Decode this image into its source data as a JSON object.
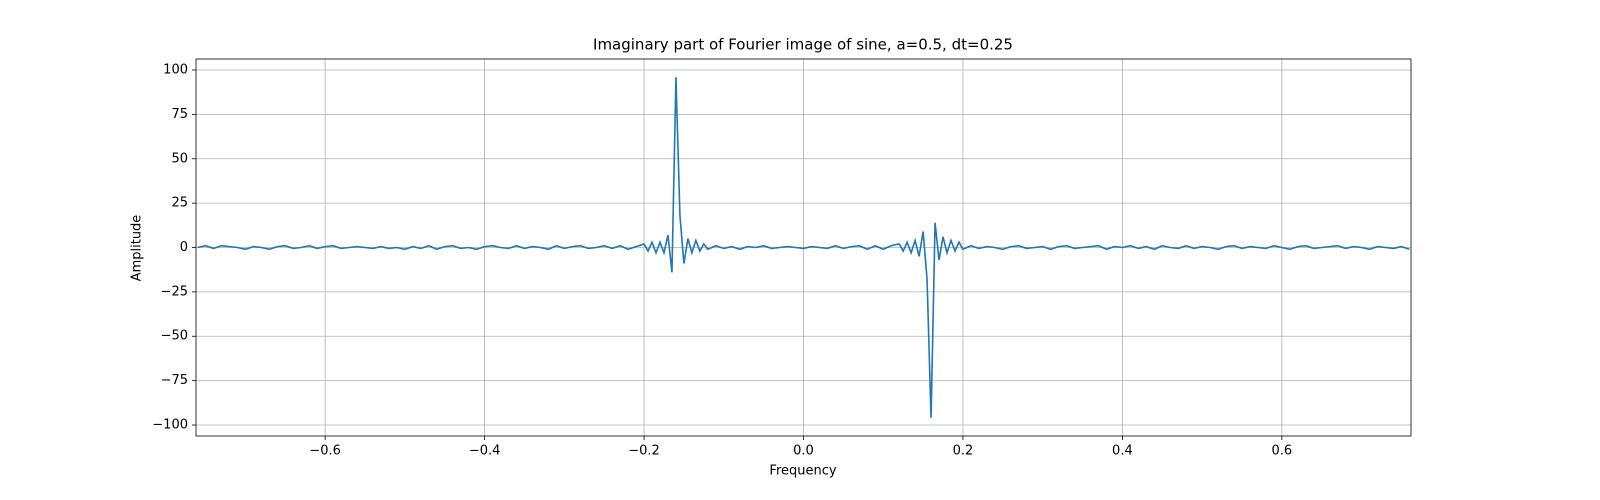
{
  "chart_data": {
    "type": "line",
    "title": "Imaginary part of Fourier image of sine, a=0.5, dt=0.25",
    "xlabel": "Frequency",
    "ylabel": "Amplitude",
    "color": "#1f77b4",
    "grid": true,
    "xlim": [
      -0.762,
      0.762
    ],
    "ylim": [
      -106.2,
      106.2
    ],
    "xticks": [
      {
        "value": -0.6,
        "label": "−0.6"
      },
      {
        "value": -0.4,
        "label": "−0.4"
      },
      {
        "value": -0.2,
        "label": "−0.2"
      },
      {
        "value": 0,
        "label": "0.0"
      },
      0.2,
      0.4,
      0.6
    ],
    "yticks": [
      {
        "value": -100,
        "label": "−100"
      },
      {
        "value": -75,
        "label": "−75"
      },
      {
        "value": -50,
        "label": "−50"
      },
      {
        "value": -25,
        "label": "−25"
      },
      0,
      25,
      50,
      75,
      100
    ],
    "x": [
      -0.76,
      -0.75,
      -0.74,
      -0.73,
      -0.72,
      -0.71,
      -0.7,
      -0.69,
      -0.68,
      -0.67,
      -0.66,
      -0.65,
      -0.64,
      -0.63,
      -0.62,
      -0.61,
      -0.6,
      -0.59,
      -0.58,
      -0.57,
      -0.56,
      -0.55,
      -0.54,
      -0.53,
      -0.52,
      -0.51,
      -0.5,
      -0.49,
      -0.48,
      -0.47,
      -0.46,
      -0.45,
      -0.44,
      -0.43,
      -0.42,
      -0.41,
      -0.4,
      -0.39,
      -0.38,
      -0.37,
      -0.36,
      -0.35,
      -0.34,
      -0.33,
      -0.32,
      -0.31,
      -0.3,
      -0.29,
      -0.28,
      -0.27,
      -0.26,
      -0.25,
      -0.24,
      -0.23,
      -0.22,
      -0.21,
      -0.2,
      -0.195,
      -0.19,
      -0.185,
      -0.18,
      -0.175,
      -0.17,
      -0.165,
      -0.16,
      -0.155,
      -0.15,
      -0.145,
      -0.14,
      -0.135,
      -0.13,
      -0.125,
      -0.12,
      -0.11,
      -0.1,
      -0.09,
      -0.08,
      -0.07,
      -0.06,
      -0.05,
      -0.04,
      -0.03,
      -0.02,
      -0.01,
      0,
      0.01,
      0.02,
      0.03,
      0.04,
      0.05,
      0.06,
      0.07,
      0.08,
      0.09,
      0.1,
      0.11,
      0.12,
      0.125,
      0.13,
      0.135,
      0.14,
      0.145,
      0.15,
      0.155,
      0.16,
      0.165,
      0.17,
      0.175,
      0.18,
      0.185,
      0.19,
      0.195,
      0.2,
      0.21,
      0.22,
      0.23,
      0.24,
      0.25,
      0.26,
      0.27,
      0.28,
      0.29,
      0.3,
      0.31,
      0.32,
      0.33,
      0.34,
      0.35,
      0.36,
      0.37,
      0.38,
      0.39,
      0.4,
      0.41,
      0.42,
      0.43,
      0.44,
      0.45,
      0.46,
      0.47,
      0.48,
      0.49,
      0.5,
      0.51,
      0.52,
      0.53,
      0.54,
      0.55,
      0.56,
      0.57,
      0.58,
      0.59,
      0.6,
      0.61,
      0.62,
      0.63,
      0.64,
      0.65,
      0.66,
      0.67,
      0.68,
      0.69,
      0.7,
      0.71,
      0.72,
      0.73,
      0.74,
      0.75,
      0.76
    ],
    "values": [
      0,
      1,
      -0.5,
      1,
      0.5,
      0,
      -1,
      0.5,
      0,
      -1,
      0.5,
      1,
      -0.5,
      0,
      1,
      -0.5,
      0.5,
      1,
      -0.5,
      0,
      0.5,
      0,
      -0.5,
      0.5,
      -0.5,
      0,
      -1,
      0.5,
      -0.5,
      1,
      -1,
      0.5,
      1,
      -0.5,
      0,
      -1,
      0.5,
      1,
      0,
      -0.5,
      1,
      -0.5,
      0.5,
      0,
      -1,
      1,
      -0.5,
      0.5,
      1,
      -0.5,
      0,
      1,
      -0.5,
      1,
      -1,
      0.5,
      2,
      -2,
      3,
      -3,
      3,
      -3,
      7,
      -14,
      96,
      18,
      -9,
      5,
      -3,
      4,
      -2,
      2,
      -1,
      1,
      -0.5,
      0.5,
      -1,
      0.5,
      0,
      1,
      -0.5,
      0,
      0.5,
      0,
      -0.5,
      0.5,
      0,
      -0.5,
      1,
      -0.5,
      0.5,
      1,
      -1,
      1,
      -1,
      1,
      2,
      -2,
      3,
      -3,
      4,
      -5,
      9,
      -18,
      -96,
      14,
      -7,
      6,
      -3,
      4,
      -2,
      3,
      -1,
      1,
      -0.5,
      0.5,
      0,
      -1,
      0.5,
      1,
      -0.5,
      0,
      0.5,
      -1,
      0.5,
      1,
      -0.5,
      0,
      0.5,
      1,
      -1,
      0.5,
      0,
      1,
      -0.5,
      0.5,
      -1,
      1,
      0,
      -0.5,
      1,
      -0.5,
      0.5,
      0,
      -1,
      0.5,
      1,
      -0.5,
      0.5,
      0,
      -0.5,
      1,
      0,
      -1,
      0.5,
      1,
      -0.5,
      0,
      0.5,
      1,
      -0.5,
      0.5,
      0,
      -1,
      0.5,
      0,
      -0.5,
      0.5,
      -1
    ]
  }
}
